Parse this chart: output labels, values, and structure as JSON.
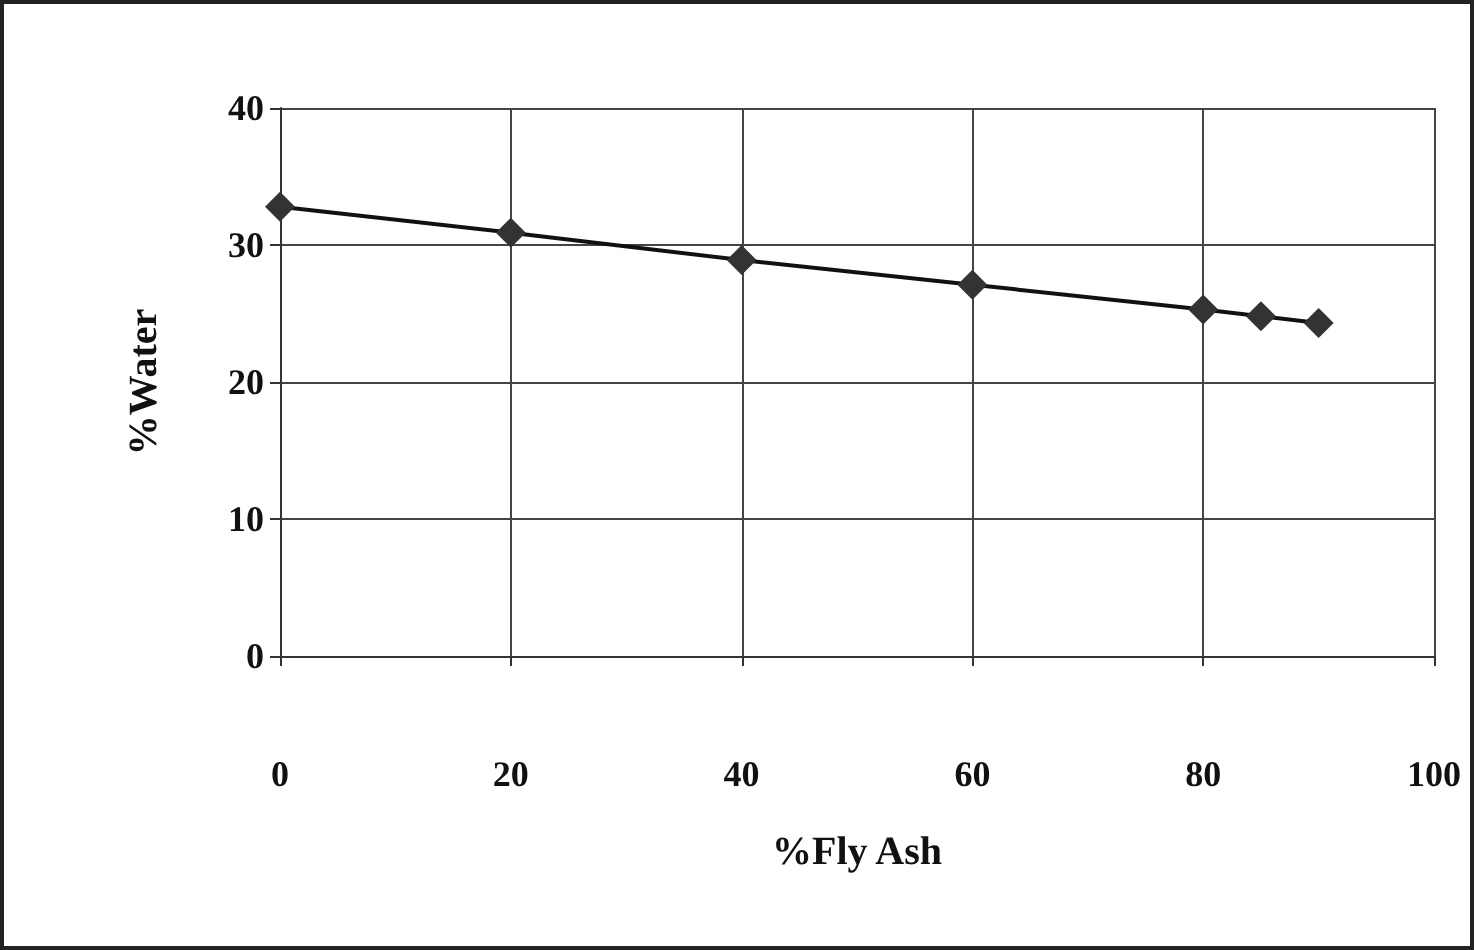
{
  "chart_data": {
    "type": "line",
    "xlabel": "%Fly Ash",
    "ylabel": "%Water",
    "x": [
      0,
      20,
      40,
      60,
      80,
      85,
      90
    ],
    "series": [
      {
        "color": "#333333",
        "values": [
          32.8,
          30.9,
          28.9,
          27.1,
          25.3,
          24.8,
          24.3
        ]
      }
    ],
    "xlim": [
      0,
      100
    ],
    "xticks": [
      0,
      20,
      40,
      60,
      80,
      100
    ],
    "ylim": [
      0,
      40
    ],
    "yticks": [
      0,
      10,
      20,
      30,
      40
    ],
    "grid": true,
    "marker": "diamond",
    "line_style": "solid"
  }
}
